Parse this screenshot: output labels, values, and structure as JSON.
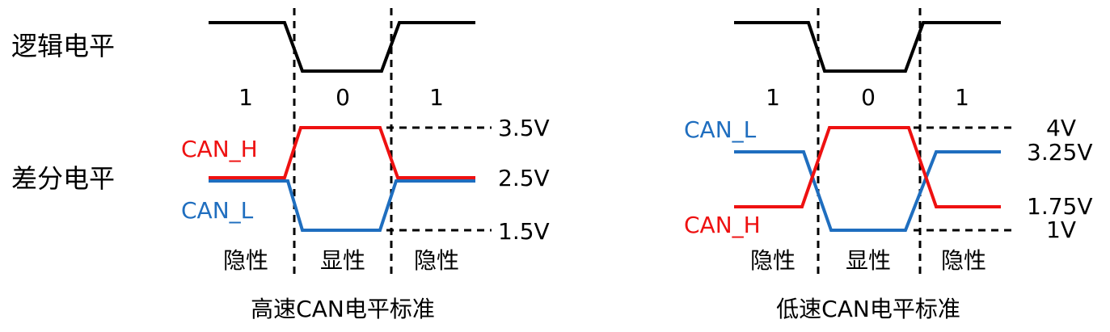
{
  "row_labels": {
    "logic": "逻辑电平",
    "differential": "差分电平"
  },
  "colors": {
    "can_h": "#ee1111",
    "can_l": "#1f6ebf",
    "logic": "#000000"
  },
  "high_speed": {
    "title": "高速CAN电平标准",
    "bits": [
      "1",
      "0",
      "1"
    ],
    "states": [
      "隐性",
      "显性",
      "隐性"
    ],
    "can_h_label": "CAN_H",
    "can_l_label": "CAN_L",
    "voltages": [
      "3.5V",
      "2.5V",
      "1.5V"
    ]
  },
  "low_speed": {
    "title": "低速CAN电平标准",
    "bits": [
      "1",
      "0",
      "1"
    ],
    "states": [
      "隐性",
      "显性",
      "隐性"
    ],
    "can_h_label": "CAN_H",
    "can_l_label": "CAN_L",
    "voltages": [
      "4V",
      "3.25V",
      "1.75V",
      "1V"
    ]
  }
}
